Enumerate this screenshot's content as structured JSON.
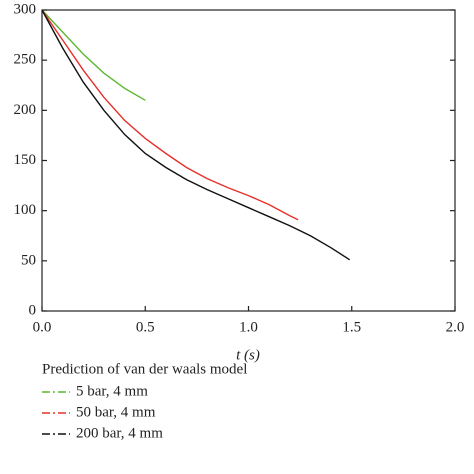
{
  "chart_data": {
    "type": "line",
    "xlabel": "t (s)",
    "legend_title": "Prediction of van der waals model",
    "xlim": [
      0,
      2.0
    ],
    "xticks": [
      {
        "value": 0,
        "label": "0.0"
      },
      0.5,
      {
        "value": 1,
        "label": "1.0"
      },
      1.5,
      {
        "value": 2,
        "label": "2.0"
      }
    ],
    "ylim": [
      0,
      300
    ],
    "yticks": [
      0,
      50,
      100,
      150,
      200,
      250,
      300
    ],
    "y2lim": [
      0,
      300
    ],
    "y2ticks": [
      0,
      50,
      100,
      150,
      200,
      250,
      300
    ],
    "legend": "below",
    "series": [
      {
        "name": "5 bar, 4 mm",
        "color": "#5cb832",
        "x": [
          0,
          0.1,
          0.2,
          0.3,
          0.4,
          0.5
        ],
        "values": [
          300,
          278,
          256,
          237,
          222,
          210
        ]
      },
      {
        "name": "50 bar, 4 mm",
        "color": "#e8302a",
        "x": [
          0,
          0.1,
          0.2,
          0.3,
          0.4,
          0.5,
          0.6,
          0.7,
          0.8,
          0.9,
          1.0,
          1.1,
          1.2,
          1.24
        ],
        "values": [
          300,
          270,
          240,
          213,
          190,
          172,
          157,
          143,
          132,
          123,
          115,
          106,
          95,
          91
        ]
      },
      {
        "name": "200 bar, 4 mm",
        "color": "#111111",
        "x": [
          0,
          0.1,
          0.2,
          0.3,
          0.4,
          0.5,
          0.6,
          0.7,
          0.8,
          0.9,
          1.0,
          1.1,
          1.2,
          1.3,
          1.4,
          1.49
        ],
        "values": [
          300,
          262,
          228,
          200,
          176,
          157,
          143,
          131,
          121,
          112,
          103,
          94,
          85,
          75,
          63,
          51
        ]
      }
    ]
  }
}
